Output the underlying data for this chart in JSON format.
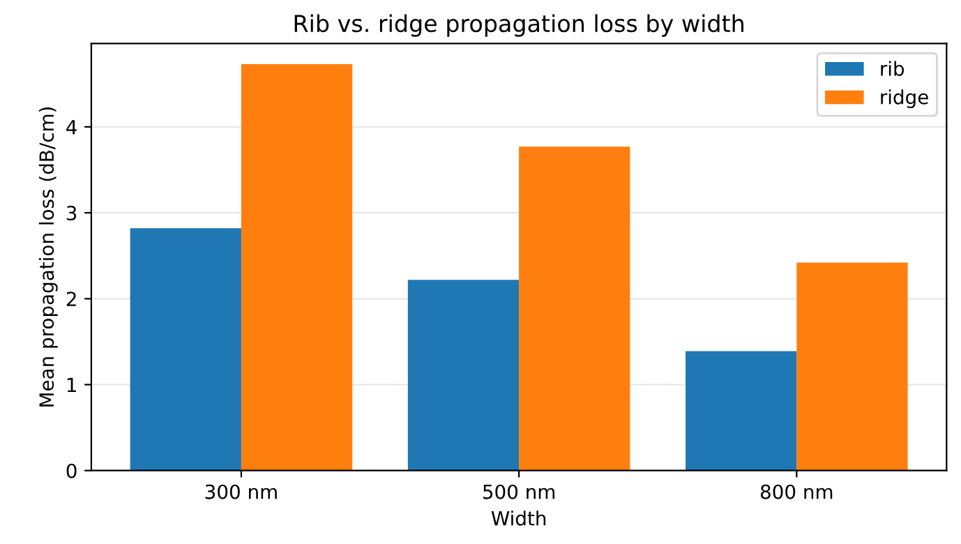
{
  "chart_data": {
    "type": "bar",
    "title": "Rib vs. ridge propagation loss by width",
    "xlabel": "Width",
    "ylabel": "Mean propagation loss (dB/cm)",
    "categories": [
      "300 nm",
      "500 nm",
      "800 nm"
    ],
    "series": [
      {
        "name": "rib",
        "color": "#1f77b4",
        "values": [
          2.82,
          2.22,
          1.39
        ]
      },
      {
        "name": "ridge",
        "color": "#ff7f0e",
        "values": [
          4.73,
          3.77,
          2.42
        ]
      }
    ],
    "ylim": [
      0,
      4.97
    ],
    "yticks": [
      0,
      1,
      2,
      3,
      4
    ],
    "grid": "y",
    "legend": "top right"
  }
}
